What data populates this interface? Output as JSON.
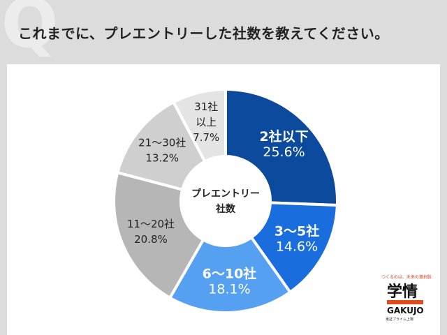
{
  "header": {
    "q_mark": "Q",
    "question": "これまでに、プレエントリーした社数を教えてください。"
  },
  "chart_data": {
    "type": "pie",
    "center_label": [
      "プレエントリー",
      "社数"
    ],
    "slices": [
      {
        "label": "2社以下",
        "value": 25.6,
        "value_text": "25.6%",
        "color": "#0b4a9c",
        "text_color": "#ffffff"
      },
      {
        "label": "3～5社",
        "value": 14.6,
        "value_text": "14.6%",
        "color": "#1a6ddc",
        "text_color": "#ffffff"
      },
      {
        "label": "6～10社",
        "value": 18.1,
        "value_text": "18.1%",
        "color": "#56a0f2",
        "text_color": "#ffffff"
      },
      {
        "label": "11～20社",
        "value": 20.8,
        "value_text": "20.8%",
        "color": "#b6b6b6",
        "text_color": "#222222"
      },
      {
        "label": "21～30社",
        "value": 13.2,
        "value_text": "13.2%",
        "color": "#cfcfcf",
        "text_color": "#222222"
      },
      {
        "label": "31社以上",
        "label_lines": [
          "31社",
          "以上"
        ],
        "value": 7.7,
        "value_text": "7.7%",
        "color": "#e4e4e4",
        "text_color": "#222222"
      }
    ]
  },
  "logo": {
    "tagline": "つくるのは、未来の選択肢",
    "main": "学情",
    "en": "GAKUJO",
    "sub": "東証プライム上場"
  }
}
